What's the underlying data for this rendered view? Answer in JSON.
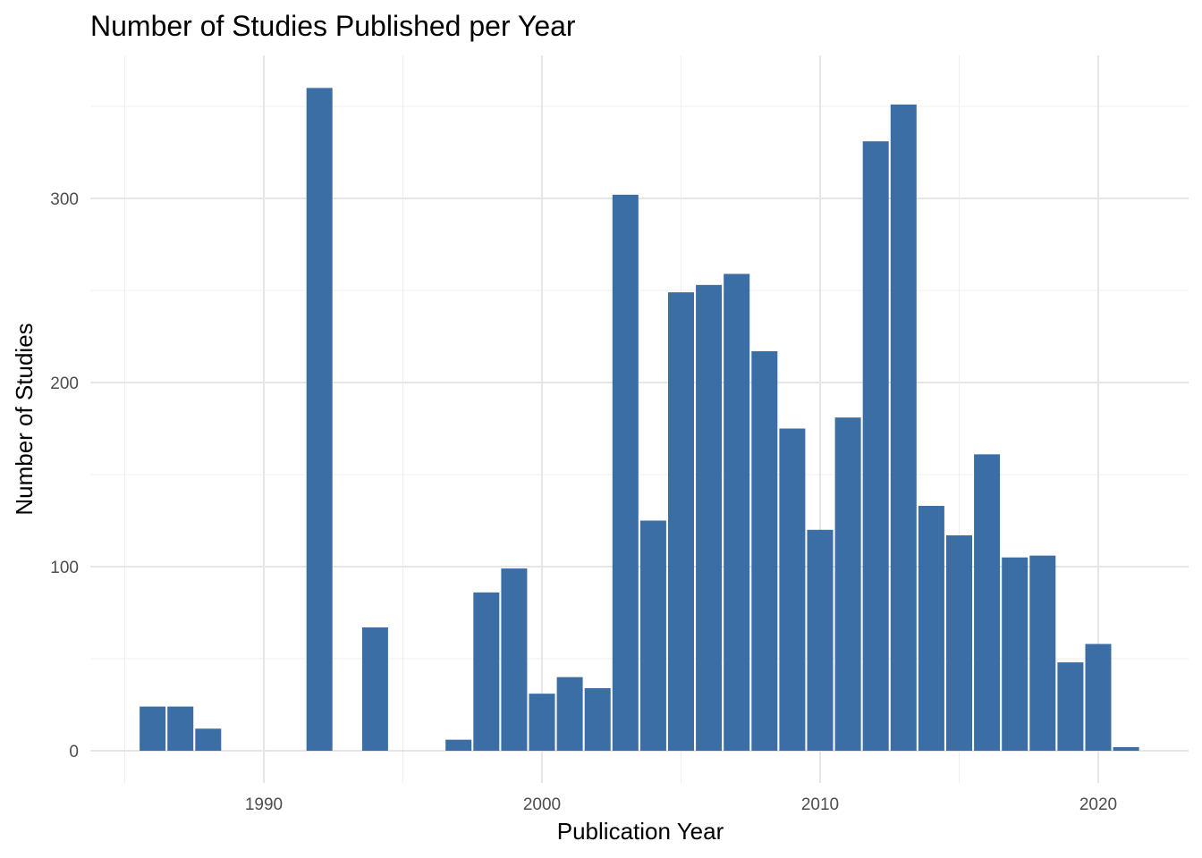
{
  "chart_data": {
    "type": "bar",
    "title": "Number of Studies Published per Year",
    "xlabel": "Publication Year",
    "ylabel": "Number of Studies",
    "xlim": [
      1984.9,
      1982.9
    ],
    "ylim": [
      -13,
      367
    ],
    "x_ticks": [
      1990,
      2000,
      2010,
      2020
    ],
    "y_ticks": [
      0,
      100,
      200,
      300
    ],
    "grid": true,
    "bar_color": "#3a6ea5",
    "x": [
      1986,
      1987,
      1988,
      1992,
      1994,
      1997,
      1998,
      1999,
      2000,
      2001,
      2002,
      2003,
      2004,
      2005,
      2006,
      2007,
      2008,
      2009,
      2010,
      2011,
      2012,
      2013,
      2014,
      2015,
      2016,
      2017,
      2018,
      2019,
      2020,
      2021
    ],
    "values": [
      24,
      24,
      12,
      360,
      67,
      6,
      86,
      99,
      31,
      40,
      34,
      302,
      125,
      249,
      253,
      259,
      217,
      175,
      120,
      181,
      331,
      351,
      133,
      117,
      161,
      105,
      106,
      48,
      58,
      2
    ]
  }
}
